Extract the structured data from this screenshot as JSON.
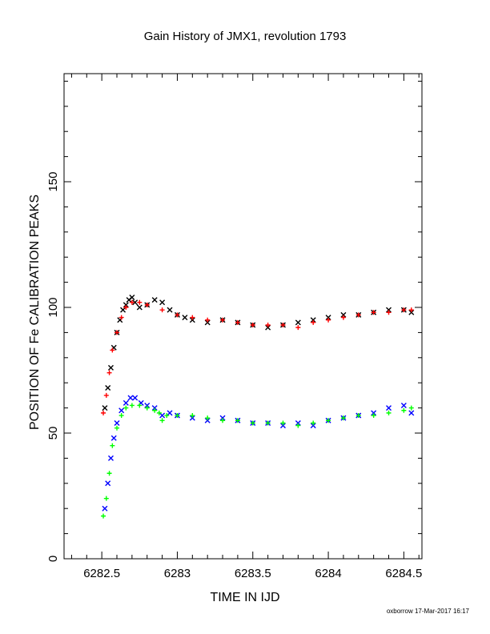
{
  "chart_data": {
    "type": "scatter",
    "title": "Gain History of JMX1, revolution 1793",
    "xlabel": "TIME IN IJD",
    "ylabel": "POSITION OF Fe CALIBRATION PEAKS",
    "xlim": [
      6282.25,
      6284.62
    ],
    "ylim": [
      0,
      193
    ],
    "xticks": [
      6282.5,
      6283,
      6283.5,
      6284,
      6284.5
    ],
    "xtick_labels": [
      "6282.5",
      "6283",
      "6283.5",
      "6284",
      "6284.5"
    ],
    "yticks": [
      0,
      50,
      100,
      150
    ],
    "ytick_labels": [
      "0",
      "50",
      "100",
      "150"
    ],
    "grid": false,
    "series": [
      {
        "color": "#000000",
        "marker": "x",
        "points": [
          [
            6282.52,
            60
          ],
          [
            6282.54,
            68
          ],
          [
            6282.56,
            76
          ],
          [
            6282.58,
            84
          ],
          [
            6282.6,
            90
          ],
          [
            6282.62,
            95
          ],
          [
            6282.64,
            99
          ],
          [
            6282.66,
            101
          ],
          [
            6282.68,
            103
          ],
          [
            6282.7,
            104
          ],
          [
            6282.72,
            102
          ],
          [
            6282.75,
            100
          ],
          [
            6282.8,
            101
          ],
          [
            6282.85,
            103
          ],
          [
            6282.9,
            102
          ],
          [
            6282.95,
            99
          ],
          [
            6283.0,
            97
          ],
          [
            6283.05,
            96
          ],
          [
            6283.1,
            95
          ],
          [
            6283.2,
            94
          ],
          [
            6283.3,
            95
          ],
          [
            6283.4,
            94
          ],
          [
            6283.5,
            93
          ],
          [
            6283.6,
            92
          ],
          [
            6283.7,
            93
          ],
          [
            6283.8,
            94
          ],
          [
            6283.9,
            95
          ],
          [
            6284.0,
            96
          ],
          [
            6284.1,
            97
          ],
          [
            6284.2,
            97
          ],
          [
            6284.3,
            98
          ],
          [
            6284.4,
            99
          ],
          [
            6284.5,
            99
          ],
          [
            6284.55,
            98
          ]
        ]
      },
      {
        "color": "#ff0000",
        "marker": "+",
        "points": [
          [
            6282.51,
            58
          ],
          [
            6282.53,
            65
          ],
          [
            6282.55,
            74
          ],
          [
            6282.57,
            83
          ],
          [
            6282.6,
            90
          ],
          [
            6282.63,
            96
          ],
          [
            6282.66,
            100
          ],
          [
            6282.7,
            102
          ],
          [
            6282.75,
            102
          ],
          [
            6282.8,
            101
          ],
          [
            6282.9,
            99
          ],
          [
            6283.0,
            97
          ],
          [
            6283.1,
            96
          ],
          [
            6283.2,
            95
          ],
          [
            6283.3,
            95
          ],
          [
            6283.4,
            94
          ],
          [
            6283.5,
            93
          ],
          [
            6283.6,
            93
          ],
          [
            6283.7,
            93
          ],
          [
            6283.8,
            92
          ],
          [
            6283.9,
            94
          ],
          [
            6284.0,
            95
          ],
          [
            6284.1,
            96
          ],
          [
            6284.2,
            97
          ],
          [
            6284.3,
            98
          ],
          [
            6284.4,
            98
          ],
          [
            6284.5,
            99
          ],
          [
            6284.55,
            99
          ]
        ]
      },
      {
        "color": "#0000ff",
        "marker": "x",
        "points": [
          [
            6282.52,
            20
          ],
          [
            6282.54,
            30
          ],
          [
            6282.56,
            40
          ],
          [
            6282.58,
            48
          ],
          [
            6282.6,
            54
          ],
          [
            6282.63,
            59
          ],
          [
            6282.66,
            62
          ],
          [
            6282.69,
            64
          ],
          [
            6282.72,
            64
          ],
          [
            6282.76,
            62
          ],
          [
            6282.8,
            61
          ],
          [
            6282.85,
            60
          ],
          [
            6282.9,
            57
          ],
          [
            6282.95,
            58
          ],
          [
            6283.0,
            57
          ],
          [
            6283.1,
            56
          ],
          [
            6283.2,
            55
          ],
          [
            6283.3,
            56
          ],
          [
            6283.4,
            55
          ],
          [
            6283.5,
            54
          ],
          [
            6283.6,
            54
          ],
          [
            6283.7,
            53
          ],
          [
            6283.8,
            54
          ],
          [
            6283.9,
            53
          ],
          [
            6284.0,
            55
          ],
          [
            6284.1,
            56
          ],
          [
            6284.2,
            57
          ],
          [
            6284.3,
            58
          ],
          [
            6284.4,
            60
          ],
          [
            6284.5,
            61
          ],
          [
            6284.55,
            58
          ]
        ]
      },
      {
        "color": "#00ff00",
        "marker": "+",
        "points": [
          [
            6282.51,
            17
          ],
          [
            6282.53,
            24
          ],
          [
            6282.55,
            34
          ],
          [
            6282.57,
            45
          ],
          [
            6282.6,
            52
          ],
          [
            6282.63,
            57
          ],
          [
            6282.66,
            60
          ],
          [
            6282.7,
            61
          ],
          [
            6282.75,
            61
          ],
          [
            6282.8,
            60
          ],
          [
            6282.85,
            59
          ],
          [
            6282.88,
            58
          ],
          [
            6282.9,
            55
          ],
          [
            6282.93,
            57
          ],
          [
            6283.0,
            57
          ],
          [
            6283.1,
            57
          ],
          [
            6283.2,
            56
          ],
          [
            6283.3,
            55
          ],
          [
            6283.4,
            55
          ],
          [
            6283.5,
            54
          ],
          [
            6283.6,
            54
          ],
          [
            6283.7,
            54
          ],
          [
            6283.8,
            53
          ],
          [
            6283.9,
            54
          ],
          [
            6284.0,
            55
          ],
          [
            6284.1,
            56
          ],
          [
            6284.2,
            57
          ],
          [
            6284.3,
            57
          ],
          [
            6284.4,
            58
          ],
          [
            6284.5,
            59
          ],
          [
            6284.55,
            60
          ]
        ]
      }
    ]
  },
  "footer_text": "oxborrow 17-Mar-2017 16:17"
}
